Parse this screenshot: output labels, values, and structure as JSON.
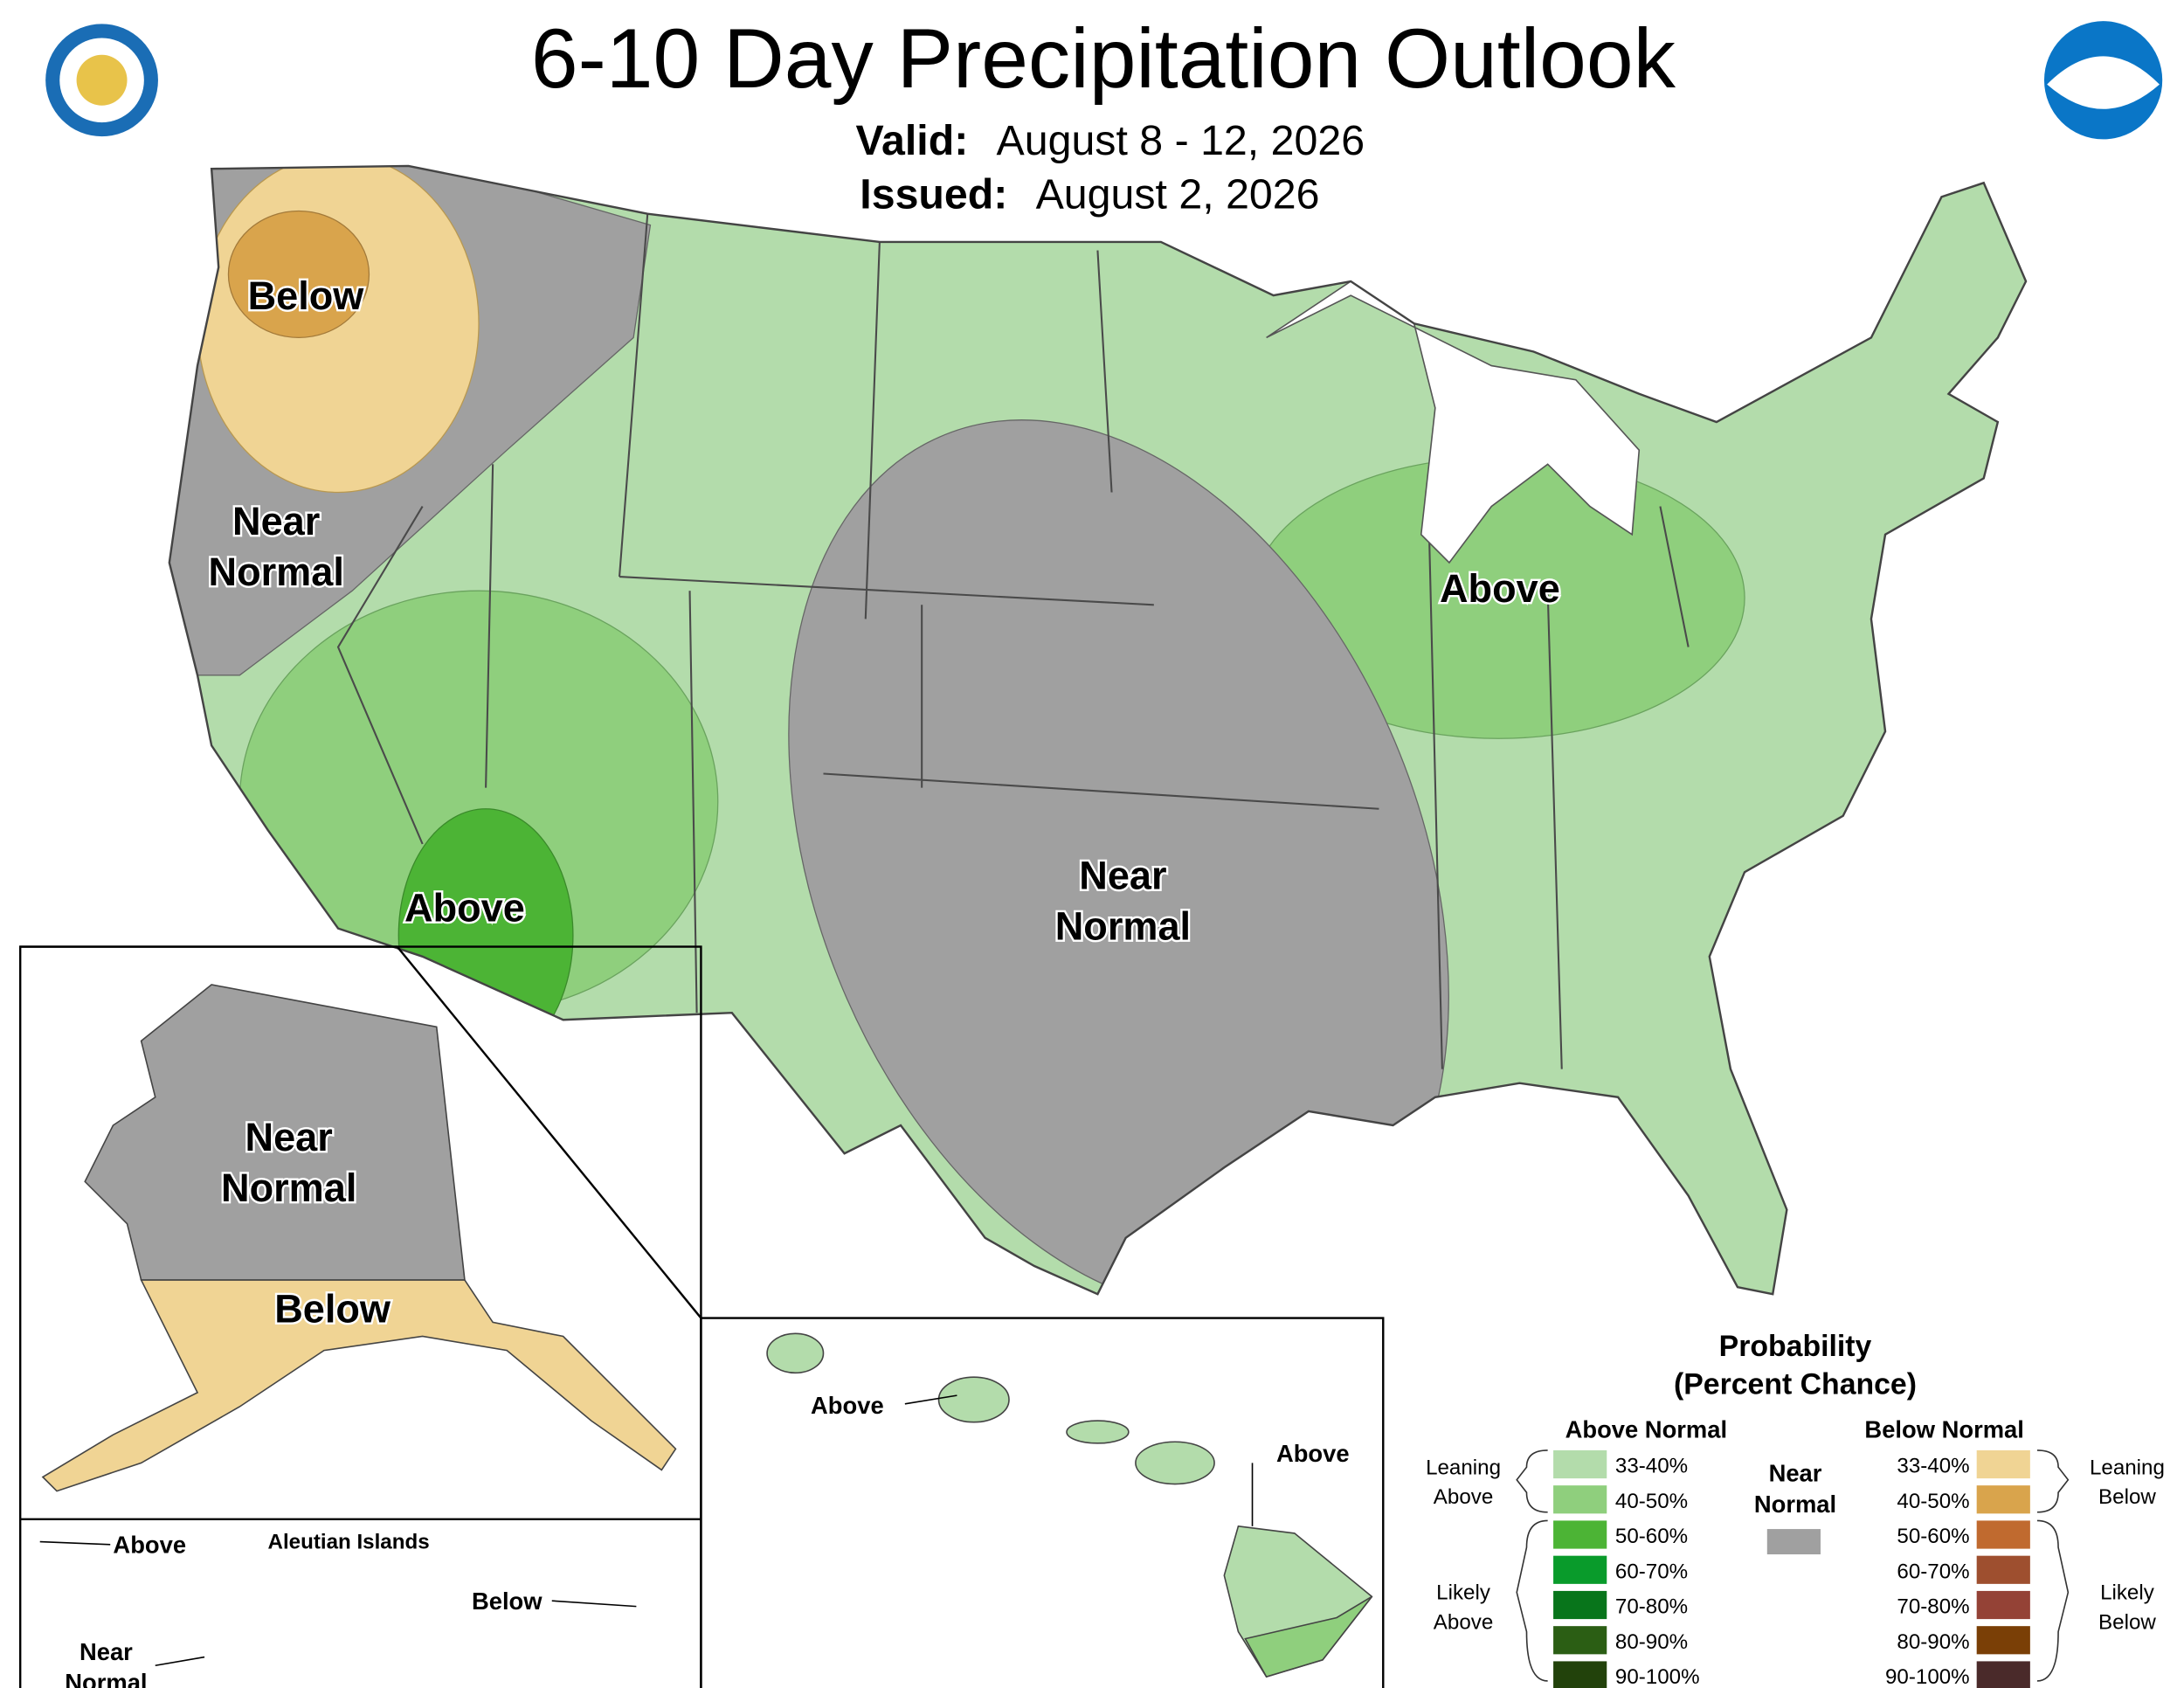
{
  "header": {
    "title": "6-10 Day Precipitation Outlook",
    "valid_label": "Valid:",
    "valid": "August 8 - 12, 2026",
    "issued_label": "Issued:",
    "issued": "August 2, 2026"
  },
  "conus_labels": [
    {
      "lines": [
        "Below"
      ]
    },
    {
      "lines": [
        "Near",
        "Normal"
      ]
    },
    {
      "lines": [
        "Above"
      ]
    },
    {
      "lines": [
        "Near",
        "Normal"
      ]
    },
    {
      "lines": [
        "Above"
      ]
    }
  ],
  "alaska_labels": [
    {
      "lines": [
        "Near",
        "Normal"
      ]
    },
    {
      "lines": [
        "Below"
      ]
    }
  ],
  "aleutian": {
    "title": "Aleutian Islands",
    "labels": [
      {
        "lines": [
          "Above"
        ]
      },
      {
        "lines": [
          "Below"
        ]
      },
      {
        "lines": [
          "Near",
          "Normal"
        ]
      }
    ]
  },
  "hawaii_labels": [
    {
      "lines": [
        "Above"
      ]
    },
    {
      "lines": [
        "Above"
      ]
    }
  ],
  "legend": {
    "title": [
      "Probability",
      "(Percent Chance)"
    ],
    "above": {
      "heading": "Above Normal",
      "bins": [
        "33-40%",
        "40-50%",
        "50-60%",
        "60-70%",
        "70-80%",
        "80-90%",
        "90-100%"
      ],
      "colors": [
        "#b3dcab",
        "#8fcf7d",
        "#4cb435",
        "#099b2b",
        "#08751b",
        "#2b5e14",
        "#22420b"
      ],
      "groups": [
        [
          "Leaning",
          "Above"
        ],
        [
          "Likely",
          "Above"
        ]
      ]
    },
    "near": {
      "heading": [
        "Near",
        "Normal"
      ],
      "color": "#a0a0a0"
    },
    "below": {
      "heading": "Below Normal",
      "bins": [
        "33-40%",
        "40-50%",
        "50-60%",
        "60-70%",
        "70-80%",
        "80-90%",
        "90-100%"
      ],
      "colors": [
        "#f0d494",
        "#d9a44c",
        "#c06a2f",
        "#9e4f2f",
        "#944236",
        "#7a3f06",
        "#4a2a2a"
      ],
      "groups": [
        [
          "Leaning",
          "Below"
        ],
        [
          "Likely",
          "Below"
        ]
      ]
    }
  }
}
